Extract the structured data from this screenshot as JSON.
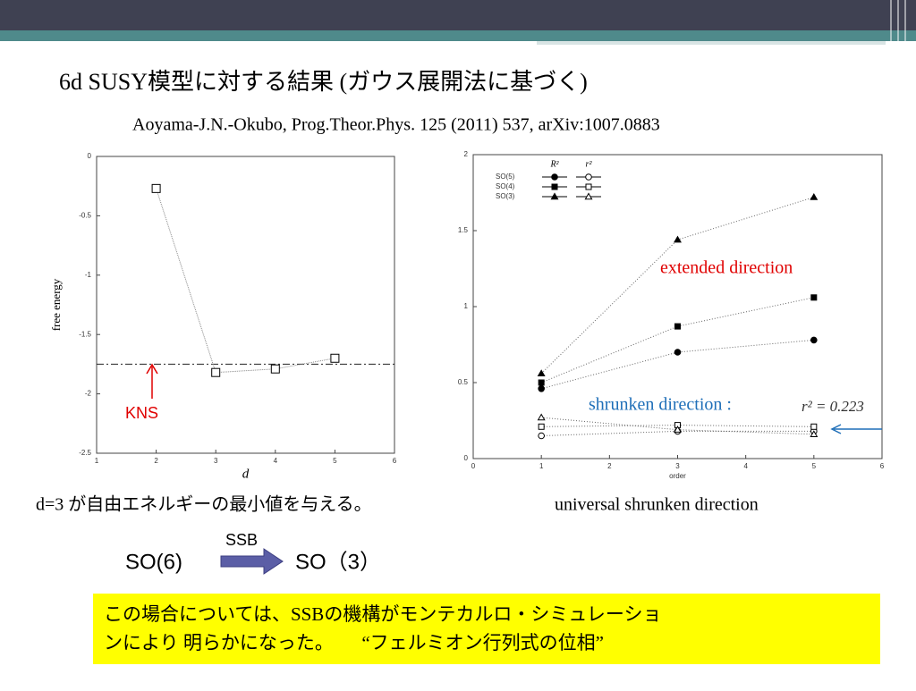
{
  "slide": {
    "title": "6d SUSY模型に対する結果 (ガウス展開法に基づく)",
    "reference": "Aoyama-J.N.-Okubo, Prog.Theor.Phys. 125 (2011) 537, arXiv:1007.0883",
    "left_caption": "d=3 が自由エネルギーの最小値を与える。",
    "right_caption": "universal shrunken direction",
    "from_group": "SO(6)",
    "arrow_label": "SSB",
    "to_group": "SO（3）",
    "box_lines": [
      "この場合については、SSBの機構がモンテカルロ・シミュレーショ",
      "ンにより 明らかになった。　　“フェルミオン行列式の位相”"
    ]
  },
  "chart_data": [
    {
      "type": "line",
      "x_label": "d",
      "y_label": "free energy",
      "x": [
        2,
        3,
        4,
        5
      ],
      "values": [
        -0.27,
        -1.82,
        -1.79,
        -1.7
      ],
      "xlim": [
        1,
        6
      ],
      "xticks": [
        1,
        2,
        3,
        4,
        5,
        6
      ],
      "ylim": [
        -2.5,
        0
      ],
      "yticks": [
        0,
        -0.5,
        -1,
        -1.5,
        -2,
        -2.5
      ],
      "reference_line": -1.75,
      "annotation": "KNS",
      "color": "#333333"
    },
    {
      "type": "scatter",
      "x_label": "order",
      "x": [
        1,
        3,
        5
      ],
      "xlim": [
        0,
        6
      ],
      "xticks": [
        0,
        1,
        2,
        3,
        4,
        5,
        6
      ],
      "ylim": [
        0,
        2
      ],
      "yticks": [
        0,
        0.5,
        1,
        1.5,
        2
      ],
      "legend_columns": [
        "R²",
        "r²"
      ],
      "series": [
        {
          "name": "SO(5)",
          "marker": "circle",
          "values": [
            0.46,
            0.7,
            0.78
          ],
          "values_r2": [
            0.15,
            0.18,
            0.18
          ]
        },
        {
          "name": "SO(4)",
          "marker": "square",
          "values": [
            0.5,
            0.87,
            1.06
          ],
          "values_r2": [
            0.21,
            0.22,
            0.21
          ]
        },
        {
          "name": "SO(3)",
          "marker": "triangle",
          "values": [
            0.56,
            1.44,
            1.72
          ],
          "values_r2": [
            0.27,
            0.19,
            0.16
          ]
        }
      ],
      "annotations": [
        "extended direction",
        "shrunken direction :",
        "r² = 0.223"
      ]
    }
  ]
}
